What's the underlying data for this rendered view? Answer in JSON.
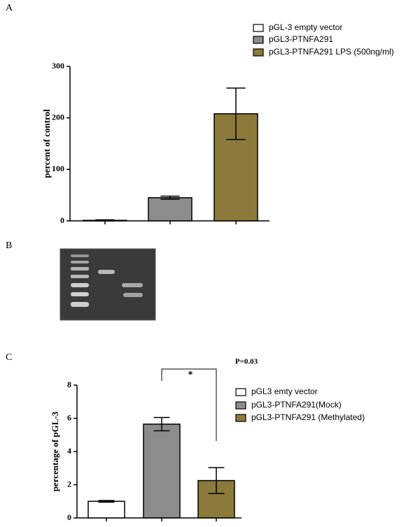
{
  "panel_labels": [
    "A",
    "B",
    "C"
  ],
  "chart_data": [
    {
      "type": "bar",
      "ylabel": "percent of control",
      "categories": [
        null,
        null,
        null
      ],
      "series": [
        {
          "name": "pGL-3 empty vector",
          "color": "#ffffff",
          "values": [
            1,
            null,
            null
          ],
          "errors": [
            1,
            null,
            null
          ]
        },
        {
          "name": "pGL3-PTNFA291",
          "color": "#8c8c8c",
          "values": [
            null,
            45,
            null
          ],
          "errors": [
            null,
            3,
            null
          ]
        },
        {
          "name": "pGL3-PTNFA291 LPS (500ng/ml)",
          "color": "#8b7a3a",
          "values": [
            null,
            null,
            208
          ],
          "errors": [
            null,
            null,
            50
          ]
        }
      ],
      "ylim": [
        0,
        300
      ],
      "yticks": [
        0,
        100,
        200,
        300
      ]
    },
    {
      "type": "bar",
      "ylabel": "percentage of pGL-3",
      "categories": [
        null,
        null,
        null
      ],
      "series": [
        {
          "name": "pGL3 emty vector",
          "color": "#ffffff",
          "values": [
            1.0,
            null,
            null
          ],
          "errors": [
            0.05,
            null,
            null
          ]
        },
        {
          "name": "pGL3-PTNFA291(Mock)",
          "color": "#8c8c8c",
          "values": [
            null,
            5.65,
            null
          ],
          "errors": [
            null,
            0.4,
            null
          ]
        },
        {
          "name": "pGL3-PTNFA291 (Methylated)",
          "color": "#8b7a3a",
          "values": [
            null,
            null,
            2.25
          ],
          "errors": [
            null,
            null,
            0.78
          ]
        }
      ],
      "ylim": [
        0,
        8
      ],
      "yticks": [
        0,
        2,
        4,
        6,
        8
      ],
      "annotations": [
        "*",
        "P=0.03"
      ]
    }
  ]
}
